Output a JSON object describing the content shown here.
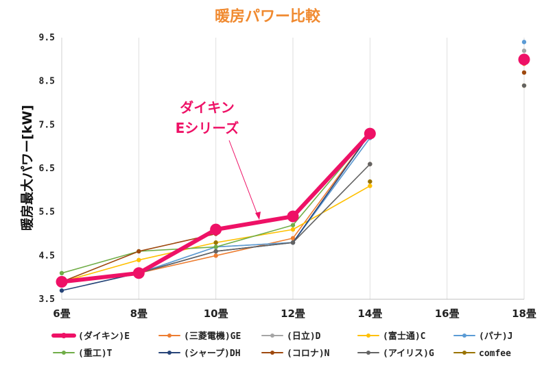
{
  "chart_data": {
    "type": "line",
    "title": "暖房パワー比較",
    "xlabel": "",
    "ylabel": "暖房最大パワー[kW]",
    "categories": [
      "6畳",
      "8畳",
      "10畳",
      "12畳",
      "14畳",
      "16畳",
      "18畳"
    ],
    "yticks": [
      "3.5",
      "4.5",
      "5.5",
      "6.5",
      "7.5",
      "8.5",
      "9.5"
    ],
    "ylim": [
      3.5,
      9.5
    ],
    "grid": "vertical",
    "legend_position": "bottom",
    "annotation": [
      "ダイキン",
      "Eシリーズ"
    ],
    "series": [
      {
        "name": "(ダイキン)E",
        "color": "#ee1166",
        "highlight": true,
        "values": [
          3.9,
          4.1,
          5.1,
          5.4,
          7.3,
          null,
          9.0
        ]
      },
      {
        "name": "(三菱電機)GE",
        "color": "#ed7d31",
        "values": [
          3.9,
          4.1,
          4.5,
          4.9,
          7.3,
          null,
          8.9
        ]
      },
      {
        "name": "(日立)D",
        "color": "#a5a5a5",
        "values": [
          3.9,
          4.1,
          4.7,
          4.8,
          7.2,
          null,
          9.2
        ]
      },
      {
        "name": "(富士通)C",
        "color": "#ffc000",
        "values": [
          3.9,
          4.4,
          4.8,
          5.1,
          6.1,
          null,
          8.4
        ]
      },
      {
        "name": "(パナ)J",
        "color": "#5b9bd5",
        "values": [
          3.9,
          4.1,
          4.7,
          4.8,
          7.2,
          null,
          9.4
        ]
      },
      {
        "name": "(重工)T",
        "color": "#70ad47",
        "values": [
          4.1,
          4.6,
          4.7,
          5.2,
          7.3,
          null,
          9.0
        ]
      },
      {
        "name": "(シャープ)DH",
        "color": "#264478",
        "values": [
          3.7,
          4.1,
          4.6,
          4.8,
          7.3,
          null,
          9.0
        ]
      },
      {
        "name": "(コロナ)N",
        "color": "#9e480e",
        "values": [
          3.9,
          4.6,
          5.0,
          null,
          6.6,
          null,
          8.7
        ]
      },
      {
        "name": "(アイリス)G",
        "color": "#636363",
        "values": [
          3.9,
          4.1,
          4.6,
          4.8,
          6.6,
          null,
          8.4
        ]
      },
      {
        "name": "comfee",
        "color": "#997300",
        "values": [
          null,
          null,
          4.8,
          null,
          6.2,
          null,
          null
        ]
      }
    ]
  }
}
